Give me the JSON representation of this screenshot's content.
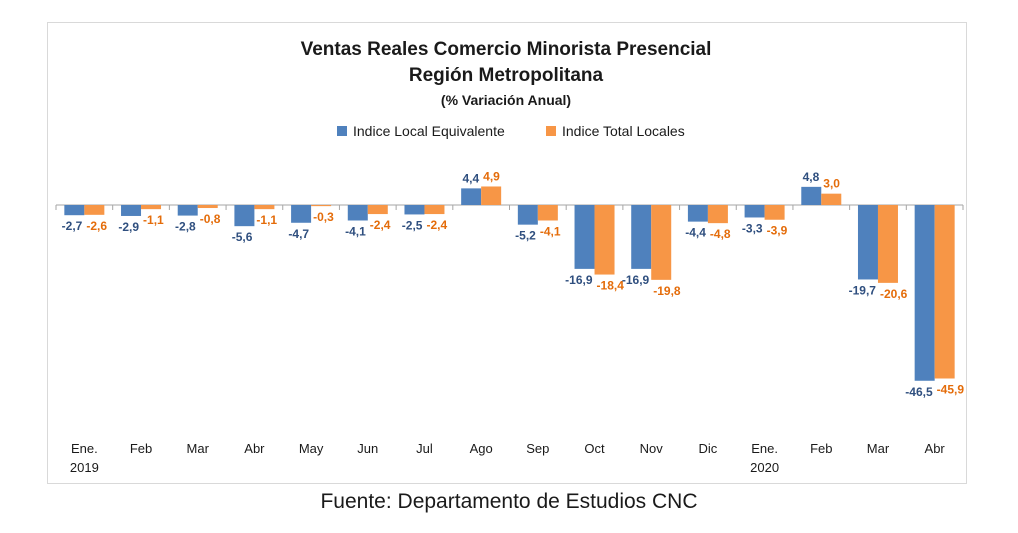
{
  "colors": {
    "series_1": "#4F81BD",
    "series_2": "#F79646",
    "label_1": "#2F4F7F",
    "label_2": "#E46C0A",
    "axis": "#A6A6A6"
  },
  "chart_data": {
    "type": "bar",
    "title": "Ventas Reales Comercio Minorista Presencial",
    "title_line2": "Región Metropolitana",
    "subtitle": "(% Variación Anual)",
    "legend_position": "top-center",
    "grid": false,
    "ylim": [
      -50,
      8
    ],
    "categories": [
      "Ene.",
      "Feb",
      "Mar",
      "Abr",
      "May",
      "Jun",
      "Jul",
      "Ago",
      "Sep",
      "Oct",
      "Nov",
      "Dic",
      "Ene.",
      "Feb",
      "Mar",
      "Abr"
    ],
    "year_labels": [
      "2019",
      "",
      "",
      "",
      "",
      "",
      "",
      "",
      "",
      "",
      "",
      "",
      "2020",
      "",
      "",
      ""
    ],
    "series": [
      {
        "name": "Indice Local Equivalente",
        "values": [
          -2.7,
          -2.9,
          -2.8,
          -5.6,
          -4.7,
          -4.1,
          -2.5,
          4.4,
          -5.2,
          -16.9,
          -16.9,
          -4.4,
          -3.3,
          4.8,
          -19.7,
          -46.5
        ],
        "labels": [
          "-2,7",
          "-2,9",
          "-2,8",
          "-5,6",
          "-4,7",
          "-4,1",
          "-2,5",
          "4,4",
          "-5,2",
          "-16,9",
          "-16,9",
          "-4,4",
          "-3,3",
          "4,8",
          "-19,7",
          "-46,5"
        ]
      },
      {
        "name": "Indice Total Locales",
        "values": [
          -2.6,
          -1.1,
          -0.8,
          -1.1,
          -0.3,
          -2.4,
          -2.4,
          4.9,
          -4.1,
          -18.4,
          -19.8,
          -4.8,
          -3.9,
          3.0,
          -20.6,
          -45.9
        ],
        "labels": [
          "-2,6",
          "-1,1",
          "-0,8",
          "-1,1",
          "-0,3",
          "-2,4",
          "-2,4",
          "4,9",
          "-4,1",
          "-18,4",
          "-19,8",
          "-4,8",
          "-3,9",
          "3,0",
          "-20,6",
          "-45,9"
        ]
      }
    ]
  },
  "source": "Fuente: Departamento de Estudios CNC"
}
